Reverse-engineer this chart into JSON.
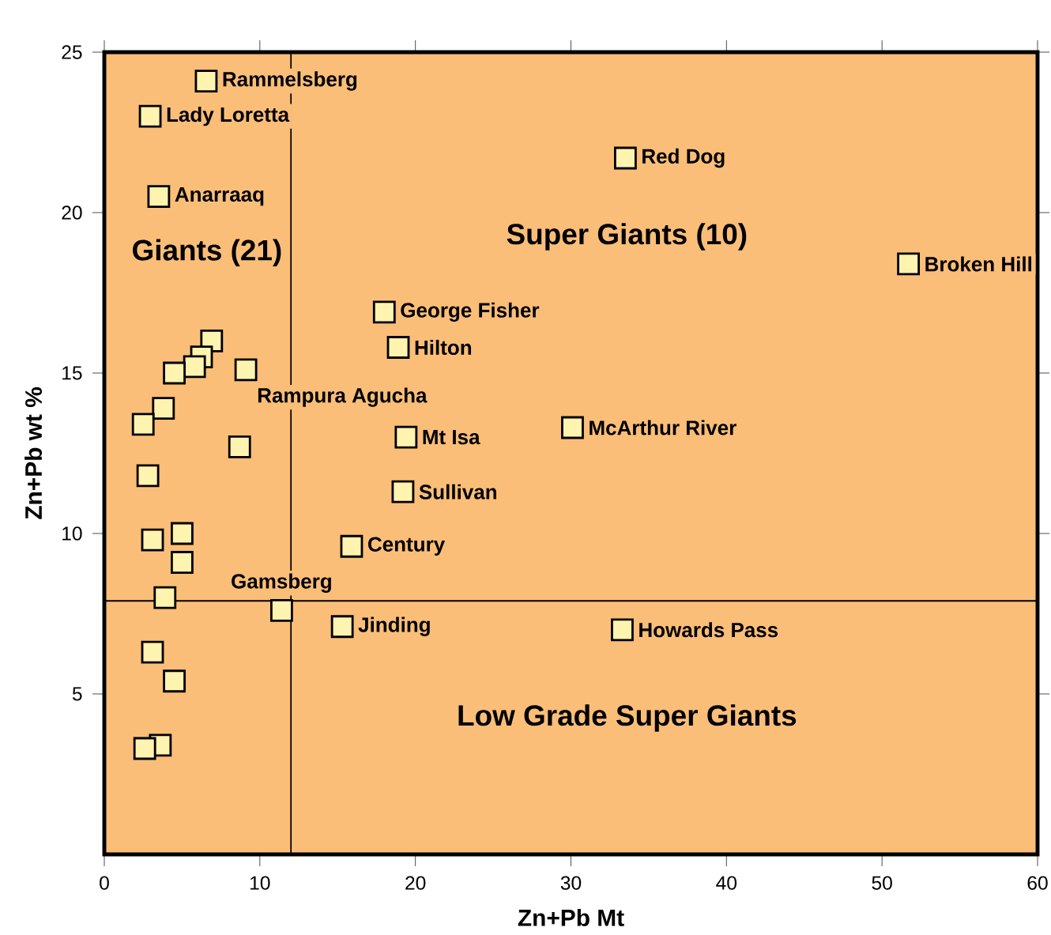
{
  "chart_data": {
    "type": "scatter",
    "xlabel": "Zn+Pb Mt",
    "ylabel": "Zn+Pb wt %",
    "xlim": [
      0,
      60
    ],
    "ylim": [
      0,
      25
    ],
    "xticks": [
      0,
      10,
      20,
      30,
      40,
      50,
      60
    ],
    "yticks": [
      5,
      10,
      15,
      20,
      25
    ],
    "marker": "square",
    "grid": false,
    "series": [
      {
        "color": "#fff3b0",
        "x": [
          6.55,
          2.95,
          3.5,
          33.5,
          51.7,
          18.0,
          18.9,
          19.4,
          30.1,
          19.2,
          15.9,
          11.4,
          15.3,
          33.3,
          9.1,
          6.9,
          6.25,
          5.8,
          4.5,
          3.8,
          2.5,
          8.7,
          2.8,
          3.1,
          5.0,
          5.0,
          3.9,
          3.1,
          4.5,
          3.6,
          2.6
        ],
        "values": [
          24.1,
          23.0,
          20.5,
          21.7,
          18.4,
          16.9,
          15.8,
          13.0,
          13.3,
          11.3,
          9.6,
          7.6,
          7.1,
          7.0,
          15.1,
          16.0,
          15.5,
          15.2,
          15.0,
          13.9,
          13.4,
          12.7,
          11.8,
          9.8,
          10.0,
          9.1,
          8.0,
          6.3,
          5.4,
          3.4,
          3.3
        ]
      }
    ],
    "ref_lines": [
      {
        "axis": "x",
        "value": 12,
        "color": "#000000"
      },
      {
        "axis": "y",
        "value": 7.9,
        "color": "#000000"
      }
    ],
    "annotations": [
      {
        "text": "Rammelsberg",
        "x": 6.55,
        "y": 24.1
      },
      {
        "text": "Lady Loretta",
        "x": 2.95,
        "y": 23.0
      },
      {
        "text": "Anarraaq",
        "x": 3.5,
        "y": 20.5
      },
      {
        "text": "Red Dog",
        "x": 33.5,
        "y": 21.7
      },
      {
        "text": "Broken Hill",
        "x": 51.7,
        "y": 18.4
      },
      {
        "text": "George Fisher",
        "x": 18.0,
        "y": 16.9
      },
      {
        "text": "Hilton",
        "x": 18.9,
        "y": 15.8
      },
      {
        "text": "Mt Isa",
        "x": 19.4,
        "y": 13.0
      },
      {
        "text": "McArthur River",
        "x": 30.1,
        "y": 13.3
      },
      {
        "text": "Sullivan",
        "x": 19.2,
        "y": 11.3
      },
      {
        "text": "Century",
        "x": 15.9,
        "y": 9.6
      },
      {
        "text": "Gamsberg",
        "x": 11.4,
        "y": 7.6
      },
      {
        "text": "Jinding",
        "x": 15.3,
        "y": 7.1
      },
      {
        "text": "Howards Pass",
        "x": 33.3,
        "y": 7.0
      },
      {
        "text": "Rampura Agucha",
        "x": 9.1,
        "y": 15.1
      },
      "Giants (21)",
      "Super Giants (10)",
      "Low Grade Super Giants"
    ]
  }
}
